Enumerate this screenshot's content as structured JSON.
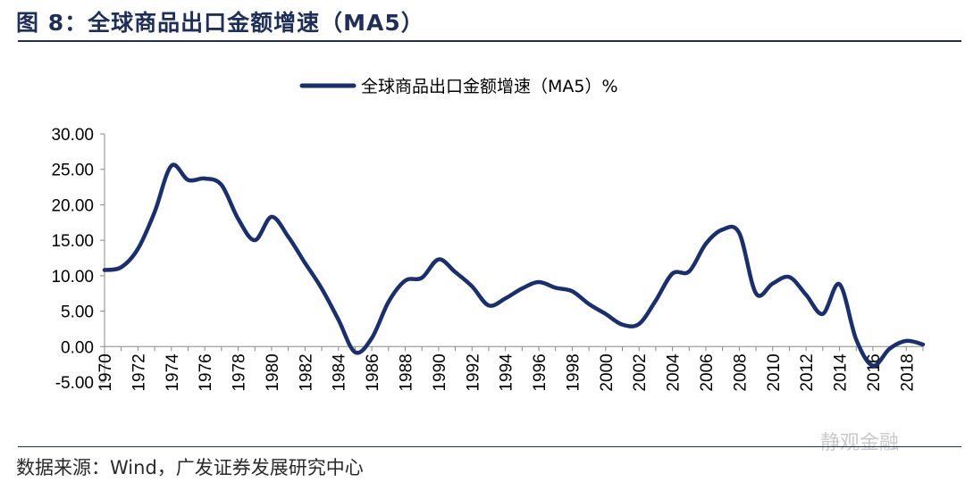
{
  "header": {
    "title": "图 8：全球商品出口金额增速（MA5）"
  },
  "footer": {
    "source": "数据来源：Wind，广发证券发展研究中心",
    "watermark": "静观金融"
  },
  "chart_data": {
    "type": "line",
    "title": "",
    "legend": "top-center",
    "xlabel": "",
    "ylabel": "",
    "ylim": [
      -5,
      30
    ],
    "yticks": [
      -5,
      0,
      5,
      10,
      15,
      20,
      25,
      30
    ],
    "ytick_labels": [
      "-5.00",
      "0.00",
      "5.00",
      "10.00",
      "15.00",
      "20.00",
      "25.00",
      "30.00"
    ],
    "x": [
      1970,
      1971,
      1972,
      1973,
      1974,
      1975,
      1976,
      1977,
      1978,
      1979,
      1980,
      1981,
      1982,
      1983,
      1984,
      1985,
      1986,
      1987,
      1988,
      1989,
      1990,
      1991,
      1992,
      1993,
      1994,
      1995,
      1996,
      1997,
      1998,
      1999,
      2000,
      2001,
      2002,
      2003,
      2004,
      2005,
      2006,
      2007,
      2008,
      2009,
      2010,
      2011,
      2012,
      2013,
      2014,
      2015,
      2016,
      2017,
      2018,
      2019
    ],
    "xtick_labels": [
      "1970",
      "1972",
      "1974",
      "1976",
      "1978",
      "1980",
      "1982",
      "1984",
      "1986",
      "1988",
      "1990",
      "1992",
      "1994",
      "1996",
      "1998",
      "2000",
      "2002",
      "2004",
      "2006",
      "2008",
      "2010",
      "2012",
      "2014",
      "2016",
      "2018"
    ],
    "series": [
      {
        "name": "全球商品出口金额增速（MA5）%",
        "color": "#1a2f6b",
        "values": [
          10.8,
          11.2,
          13.8,
          19.0,
          25.5,
          23.5,
          23.7,
          22.8,
          18.0,
          15.0,
          18.3,
          15.5,
          11.8,
          8.2,
          3.8,
          -0.8,
          1.2,
          6.3,
          9.3,
          9.7,
          12.3,
          10.5,
          8.5,
          5.8,
          6.8,
          8.2,
          9.1,
          8.3,
          7.8,
          6.0,
          4.6,
          3.1,
          3.2,
          6.5,
          10.3,
          10.6,
          14.5,
          16.5,
          16.0,
          7.5,
          8.9,
          9.8,
          7.3,
          4.6,
          8.8,
          1.0,
          -2.7,
          -0.3,
          0.8,
          0.3
        ]
      }
    ]
  }
}
